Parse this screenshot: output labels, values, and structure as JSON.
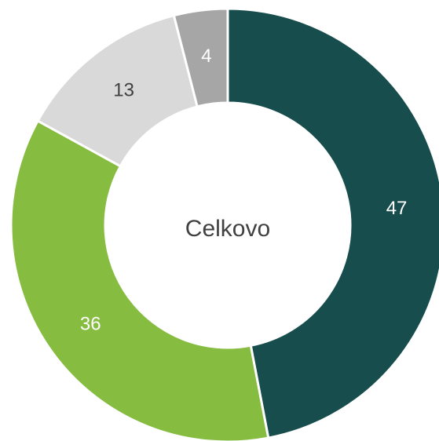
{
  "chart_data": {
    "type": "donut",
    "center_label": "Celkovo",
    "series": [
      {
        "values": [
          47,
          36,
          13,
          4
        ],
        "colors": [
          "#174d4c",
          "#86bc40",
          "#d9d9d9",
          "#a6a6a6"
        ]
      }
    ]
  }
}
